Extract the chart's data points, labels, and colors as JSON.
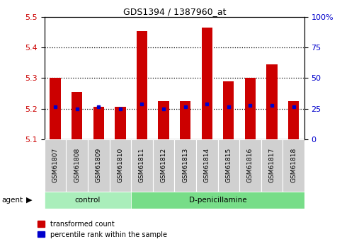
{
  "title": "GDS1394 / 1387960_at",
  "samples": [
    "GSM61807",
    "GSM61808",
    "GSM61809",
    "GSM61810",
    "GSM61811",
    "GSM61812",
    "GSM61813",
    "GSM61814",
    "GSM61815",
    "GSM61816",
    "GSM61817",
    "GSM61818"
  ],
  "transformed_counts": [
    5.3,
    5.255,
    5.205,
    5.205,
    5.455,
    5.225,
    5.225,
    5.465,
    5.29,
    5.3,
    5.345,
    5.225
  ],
  "percentile_ranks_y": [
    5.205,
    5.2,
    5.205,
    5.2,
    5.215,
    5.2,
    5.205,
    5.215,
    5.205,
    5.21,
    5.21,
    5.205
  ],
  "ylim_left": [
    5.1,
    5.5
  ],
  "ylim_right": [
    0,
    100
  ],
  "yticks_left": [
    5.1,
    5.2,
    5.3,
    5.4,
    5.5
  ],
  "yticks_right": [
    0,
    25,
    50,
    75,
    100
  ],
  "ytick_labels_right": [
    "0",
    "25",
    "50",
    "75",
    "100%"
  ],
  "bar_color": "#cc0000",
  "dot_color": "#0000cc",
  "control_label": "control",
  "treatment_label": "D-penicillamine",
  "agent_label": "agent",
  "legend_red": "transformed count",
  "legend_blue": "percentile rank within the sample",
  "bar_width": 0.5,
  "grid_color": "black",
  "background_plot": "white",
  "tick_bg_color": "#d0d0d0",
  "control_bg": "#aaeebb",
  "treatment_bg": "#77dd88"
}
